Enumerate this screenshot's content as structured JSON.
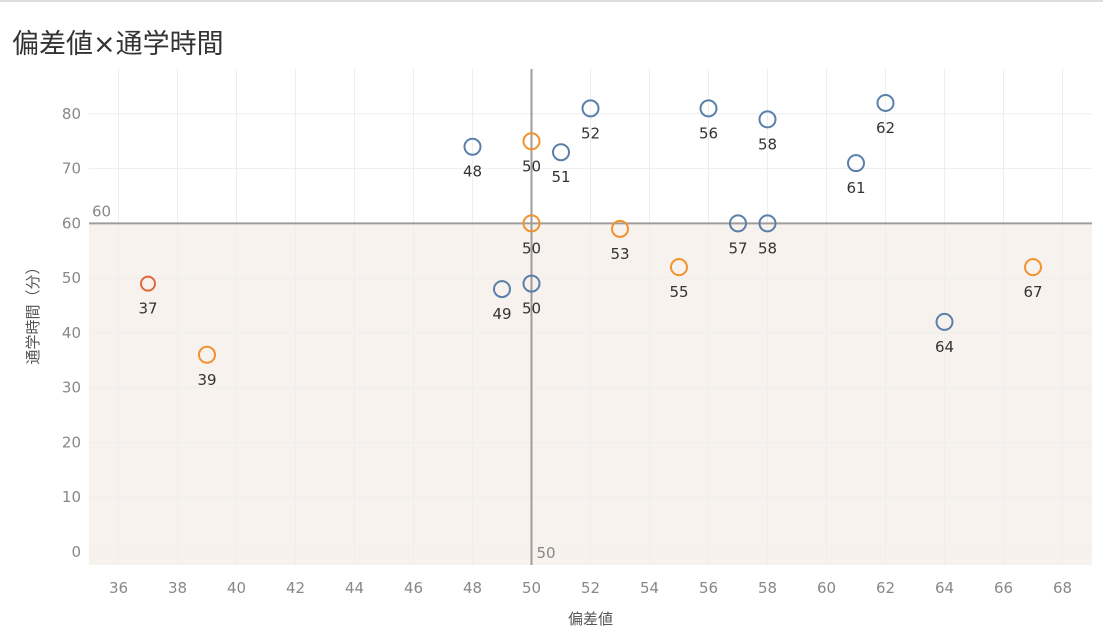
{
  "title": "偏差値×通学時間",
  "colors": {
    "blue": "#5a7fa9",
    "orange": "#f2912e",
    "red_orange": "#e2653c",
    "band": "#f7f2ee",
    "refline": "#a09c9a"
  },
  "chart_data": {
    "type": "scatter",
    "title": "偏差値×通学時間",
    "xlabel": "偏差値",
    "ylabel": "通学時間（分）",
    "xlim": [
      35,
      69
    ],
    "ylim": [
      -2.4,
      88.2
    ],
    "xticks": [
      36,
      38,
      40,
      42,
      44,
      46,
      48,
      50,
      52,
      54,
      56,
      58,
      60,
      62,
      64,
      66,
      68
    ],
    "yticks": [
      0,
      10,
      20,
      30,
      40,
      50,
      60,
      70,
      80
    ],
    "grid": true,
    "reference_lines": {
      "x": 50,
      "x_label": "50",
      "y": 60,
      "y_label": "60"
    },
    "shaded_band": {
      "y_from": -2.4,
      "y_to": 60
    },
    "points": [
      {
        "x": 48,
        "y": 74,
        "label": "48",
        "color": "blue"
      },
      {
        "x": 51,
        "y": 73,
        "label": "51",
        "color": "blue"
      },
      {
        "x": 52,
        "y": 81,
        "label": "52",
        "color": "blue"
      },
      {
        "x": 56,
        "y": 81,
        "label": "56",
        "color": "blue"
      },
      {
        "x": 58,
        "y": 79,
        "label": "58",
        "color": "blue"
      },
      {
        "x": 62,
        "y": 82,
        "label": "62",
        "color": "blue"
      },
      {
        "x": 61,
        "y": 71,
        "label": "61",
        "color": "blue"
      },
      {
        "x": 57,
        "y": 60,
        "label": "57",
        "color": "blue"
      },
      {
        "x": 58,
        "y": 60,
        "label": "58",
        "color": "blue"
      },
      {
        "x": 49,
        "y": 48,
        "label": "49",
        "color": "blue"
      },
      {
        "x": 50,
        "y": 49,
        "label": "50",
        "color": "blue"
      },
      {
        "x": 64,
        "y": 42,
        "label": "64",
        "color": "blue"
      },
      {
        "x": 50,
        "y": 75,
        "label": "50",
        "color": "orange"
      },
      {
        "x": 50,
        "y": 60,
        "label": "50",
        "color": "orange"
      },
      {
        "x": 53,
        "y": 59,
        "label": "53",
        "color": "orange"
      },
      {
        "x": 55,
        "y": 52,
        "label": "55",
        "color": "orange"
      },
      {
        "x": 67,
        "y": 52,
        "label": "67",
        "color": "orange"
      },
      {
        "x": 37,
        "y": 49,
        "label": "37",
        "color": "red_orange"
      },
      {
        "x": 39,
        "y": 36,
        "label": "39",
        "color": "orange"
      }
    ]
  }
}
